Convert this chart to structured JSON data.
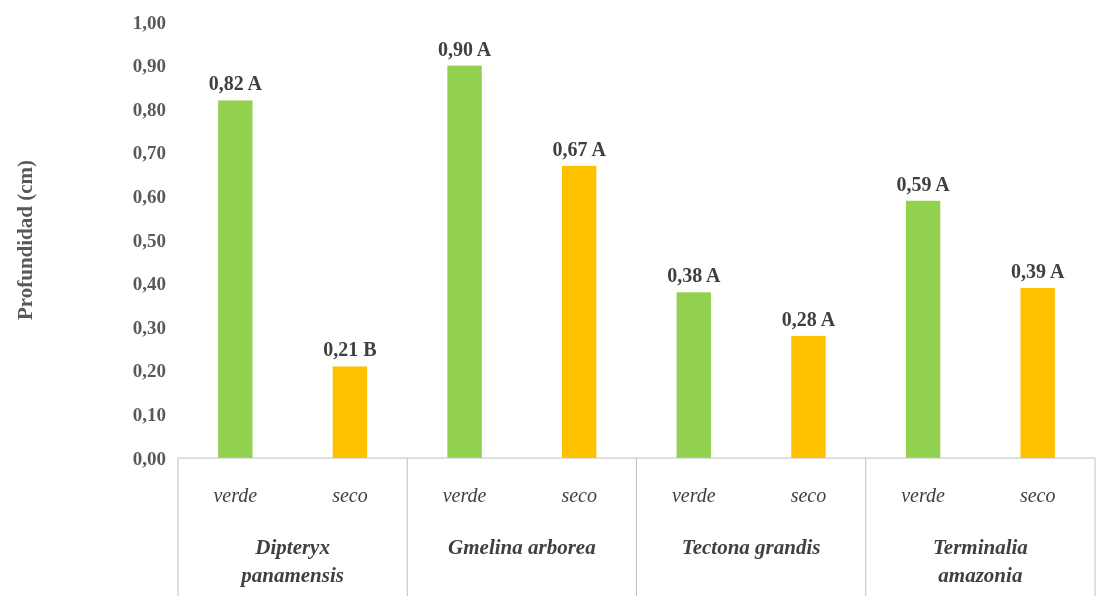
{
  "chart_data": {
    "type": "bar",
    "ylabel": "Profundidad (cm)",
    "categories": [
      "verde",
      "seco",
      "verde",
      "seco",
      "verde",
      "seco",
      "verde",
      "seco"
    ],
    "values": [
      0.82,
      0.21,
      0.9,
      0.67,
      0.38,
      0.28,
      0.59,
      0.39
    ],
    "colors": [
      "#92d050",
      "#ffc000",
      "#92d050",
      "#ffc000",
      "#92d050",
      "#ffc000",
      "#92d050",
      "#ffc000"
    ],
    "value_labels": [
      "0,82 A",
      "0,21 B",
      "0,90 A",
      "0,67 A",
      "0,38 A",
      "0,28 A",
      "0,59 A",
      "0,39 A"
    ],
    "ylim": [
      0,
      1
    ],
    "yticks": [
      {
        "value": 0,
        "label": "0,00"
      },
      {
        "value": 0.1,
        "label": "0,10"
      },
      {
        "value": 0.2,
        "label": "0,20"
      },
      {
        "value": 0.3,
        "label": "0,30"
      },
      {
        "value": 0.4,
        "label": "0,40"
      },
      {
        "value": 0.5,
        "label": "0,50"
      },
      {
        "value": 0.6,
        "label": "0,60"
      },
      {
        "value": 0.7,
        "label": "0,70"
      },
      {
        "value": 0.8,
        "label": "0,80"
      },
      {
        "value": 0.9,
        "label": "0,90"
      },
      {
        "value": 1,
        "label": "1,00"
      }
    ],
    "annotations": [
      "Dipteryx panamensis",
      "Gmelina arborea",
      "Tectona grandis",
      "Terminalia amazonia"
    ]
  }
}
